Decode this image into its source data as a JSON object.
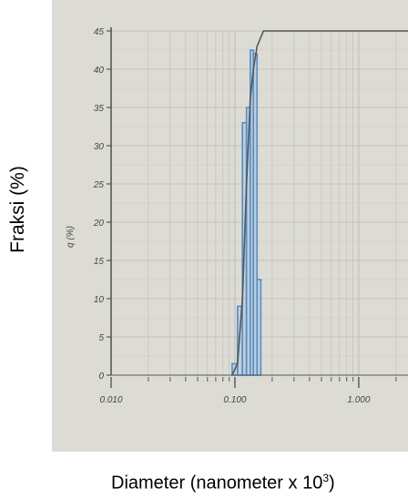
{
  "chart_data": {
    "type": "bar",
    "xscale": "log",
    "xlim": [
      0.01,
      2.5
    ],
    "ylim": [
      0,
      45
    ],
    "grid": true,
    "xlabel": "Diameter (nanometer x 10",
    "xlabel_sup": "3",
    "xlabel_close": ")",
    "ylabel": "Fraksi (%)",
    "ylabel_inner": "q (%)",
    "x_ticks": [
      {
        "value": 0.01,
        "label": "0.010"
      },
      {
        "value": 0.1,
        "label": "0.100"
      },
      {
        "value": 1.0,
        "label": "1.000"
      }
    ],
    "y_ticks": [
      {
        "value": 0,
        "label": "0"
      },
      {
        "value": 5,
        "label": "5"
      },
      {
        "value": 10,
        "label": "10"
      },
      {
        "value": 15,
        "label": "15"
      },
      {
        "value": 20,
        "label": "20"
      },
      {
        "value": 25,
        "label": "25"
      },
      {
        "value": 30,
        "label": "30"
      },
      {
        "value": 35,
        "label": "35"
      },
      {
        "value": 40,
        "label": "40"
      },
      {
        "value": 45,
        "label": "45"
      }
    ],
    "bins": [
      {
        "x0": 0.095,
        "x1": 0.105,
        "value": 1.5
      },
      {
        "x0": 0.105,
        "x1": 0.115,
        "value": 9
      },
      {
        "x0": 0.115,
        "x1": 0.124,
        "value": 33
      },
      {
        "x0": 0.124,
        "x1": 0.133,
        "value": 35
      },
      {
        "x0": 0.133,
        "x1": 0.141,
        "value": 42.5
      },
      {
        "x0": 0.141,
        "x1": 0.151,
        "value": 42
      },
      {
        "x0": 0.151,
        "x1": 0.162,
        "value": 12.5
      }
    ],
    "cumulative_line": [
      [
        0.095,
        0
      ],
      [
        0.105,
        1.5
      ],
      [
        0.115,
        10
      ],
      [
        0.124,
        25
      ],
      [
        0.133,
        36
      ],
      [
        0.141,
        40
      ],
      [
        0.151,
        43
      ],
      [
        0.17,
        45
      ],
      [
        2.5,
        45
      ]
    ],
    "colors": {
      "panel": "#dcdcd5",
      "grid": "#bdbdb5",
      "axis": "#555555",
      "bar_fill": "#b9c9d6",
      "bar_stroke": "#4f8fc8",
      "cumulative": "#555555",
      "tick_text": "#444444"
    }
  }
}
